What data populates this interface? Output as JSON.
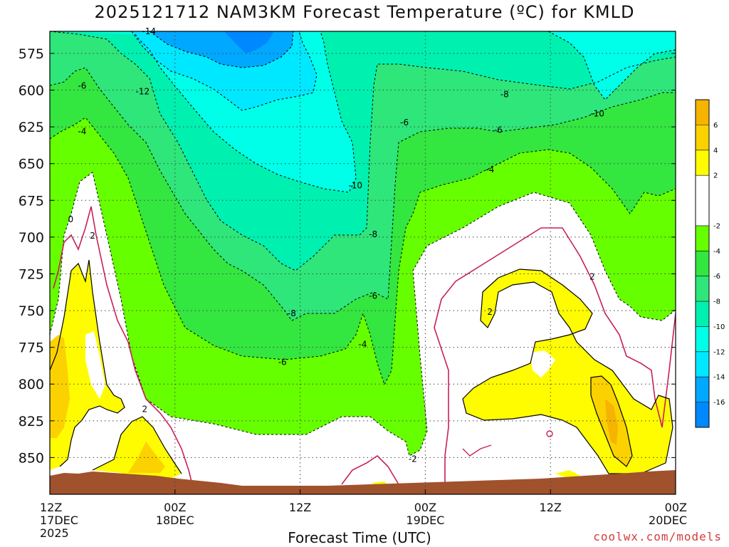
{
  "chart_data": {
    "type": "heatmap",
    "title": "2025121712 NAM3KM Forecast Temperature (ºC) for KMLD",
    "xlabel": "Forecast Time (UTC)",
    "ylabel": "",
    "x_ticks": [
      {
        "hour": 0,
        "l1": "12Z",
        "l2": "17DEC",
        "l3": "2025"
      },
      {
        "hour": 12,
        "l1": "00Z",
        "l2": "18DEC",
        "l3": ""
      },
      {
        "hour": 24,
        "l1": "12Z",
        "l2": "",
        "l3": ""
      },
      {
        "hour": 36,
        "l1": "00Z",
        "l2": "19DEC",
        "l3": ""
      },
      {
        "hour": 48,
        "l1": "12Z",
        "l2": "",
        "l3": ""
      },
      {
        "hour": 60,
        "l1": "00Z",
        "l2": "20DEC",
        "l3": ""
      }
    ],
    "xlim_hours": [
      0,
      60
    ],
    "y_ticks": [
      575,
      600,
      625,
      650,
      675,
      700,
      725,
      750,
      775,
      800,
      825,
      850
    ],
    "ylim_hpa": [
      560,
      875
    ],
    "grid": true,
    "colorbar": {
      "placement": "right",
      "labels": [
        6,
        4,
        2,
        -2,
        -4,
        -6,
        -8,
        -10,
        -12,
        -14,
        -16
      ],
      "bands": [
        {
          "from": 6,
          "to": 8,
          "color": "#f5b400"
        },
        {
          "from": 4,
          "to": 6,
          "color": "#fbd200"
        },
        {
          "from": 2,
          "to": 4,
          "color": "#fffc00"
        },
        {
          "from": -2,
          "to": 2,
          "color": "#ffffff"
        },
        {
          "from": -4,
          "to": -2,
          "color": "#66ff00"
        },
        {
          "from": -6,
          "to": -4,
          "color": "#33e640"
        },
        {
          "from": -8,
          "to": -6,
          "color": "#2ee67a"
        },
        {
          "from": -10,
          "to": -8,
          "color": "#00f0b0"
        },
        {
          "from": -12,
          "to": -10,
          "color": "#00ffe8"
        },
        {
          "from": -14,
          "to": -12,
          "color": "#00e8ff"
        },
        {
          "from": -16,
          "to": -14,
          "color": "#00a8ff"
        },
        {
          "from": -18,
          "to": -16,
          "color": "#0088ff"
        }
      ]
    },
    "colors": {
      "ground": "#a0522d",
      "freezing_line": "#c8205a",
      "positive_line": "#000000"
    },
    "contour_labels": [
      {
        "text": "-14",
        "hour": 9.5,
        "hpa": 560
      },
      {
        "text": "-6",
        "hour": 3.1,
        "hpa": 597
      },
      {
        "text": "-12",
        "hour": 8.9,
        "hpa": 601
      },
      {
        "text": "-4",
        "hour": 3.1,
        "hpa": 628
      },
      {
        "text": "-8",
        "hour": 43.6,
        "hpa": 603
      },
      {
        "text": "-10",
        "hour": 52.5,
        "hpa": 616
      },
      {
        "text": "-6",
        "hour": 34.0,
        "hpa": 622
      },
      {
        "text": "-6",
        "hour": 43.0,
        "hpa": 627
      },
      {
        "text": "-4",
        "hour": 42.2,
        "hpa": 654
      },
      {
        "text": "-10",
        "hour": 29.3,
        "hpa": 665
      },
      {
        "text": "0",
        "hour": 2.0,
        "hpa": 688
      },
      {
        "text": "2",
        "hour": 4.1,
        "hpa": 699
      },
      {
        "text": "-8",
        "hour": 31.0,
        "hpa": 698
      },
      {
        "text": "-6",
        "hour": 31.0,
        "hpa": 740
      },
      {
        "text": "2",
        "hour": 52.0,
        "hpa": 727
      },
      {
        "text": "2",
        "hour": 42.2,
        "hpa": 751
      },
      {
        "text": "-8",
        "hour": 23.2,
        "hpa": 752
      },
      {
        "text": "-4",
        "hour": 30.0,
        "hpa": 773
      },
      {
        "text": "-6",
        "hour": 22.3,
        "hpa": 785
      },
      {
        "text": "2",
        "hour": 9.1,
        "hpa": 817
      },
      {
        "text": "-2",
        "hour": 34.8,
        "hpa": 851
      }
    ]
  },
  "credit": "coolwx.com/models"
}
